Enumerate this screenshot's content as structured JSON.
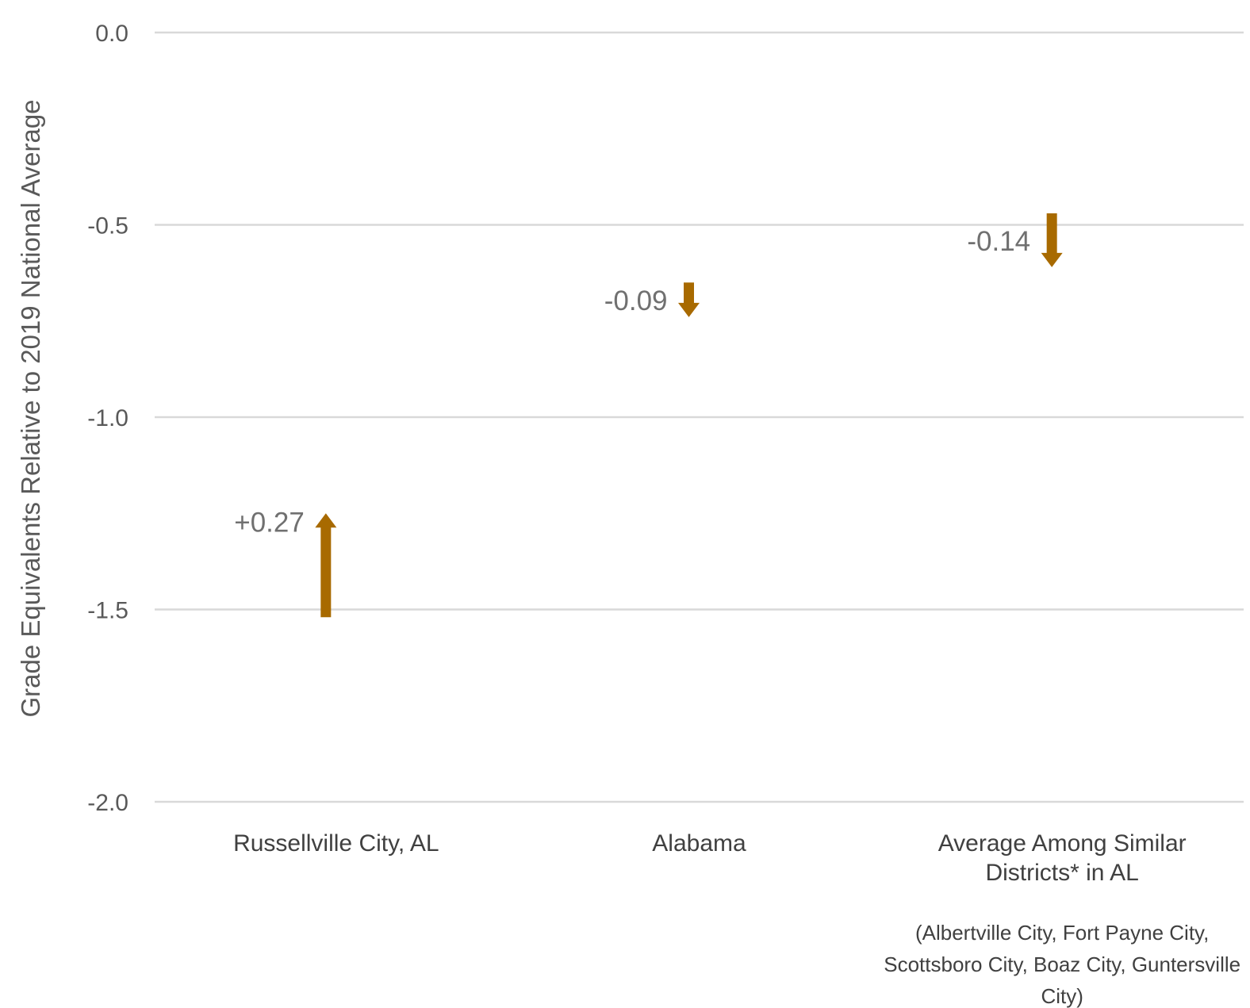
{
  "chart_data": {
    "type": "arrow",
    "ylabel": "Grade Equivalents Relative to 2019 National Average",
    "ylim": [
      -2.0,
      0.0
    ],
    "yticks": [
      "0.0",
      "-0.5",
      "-1.0",
      "-1.5",
      "-2.0"
    ],
    "grid": true,
    "arrow_color": "#A86A00",
    "categories": [
      {
        "label_lines": [
          "Russellville City, AL"
        ],
        "start": -1.52,
        "end": -1.25,
        "change_label": "+0.27"
      },
      {
        "label_lines": [
          "Alabama"
        ],
        "start": -0.65,
        "end": -0.74,
        "change_label": "-0.09"
      },
      {
        "label_lines": [
          "Average Among Similar",
          "Districts* in AL"
        ],
        "start": -0.47,
        "end": -0.61,
        "change_label": "-0.14"
      }
    ],
    "note_lines": [
      "(Albertville City, Fort Payne City,",
      "Scottsboro City, Boaz City, Guntersville",
      "City)"
    ]
  }
}
